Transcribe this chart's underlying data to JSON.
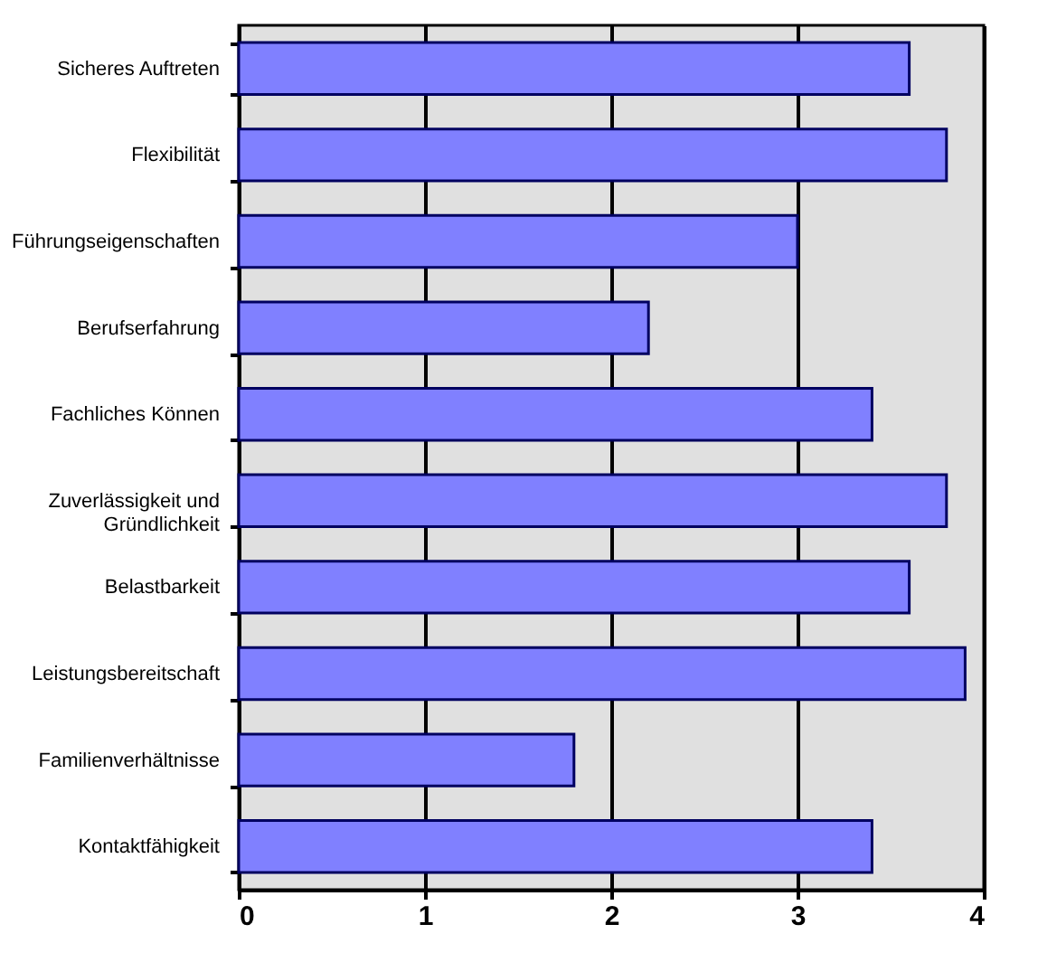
{
  "chart_data": {
    "type": "bar",
    "orientation": "horizontal",
    "categories": [
      "Sicheres Auftreten",
      "Flexibilität",
      "Führungseigenschaften",
      "Berufserfahrung",
      "Fachliches Können",
      "Zuverlässigkeit und Gründlichkeit",
      "Belastbarkeit",
      "Leistungsbereitschaft",
      "Familienverhältnisse",
      "Kontaktfähigkeit"
    ],
    "values": [
      3.6,
      3.8,
      3.0,
      2.2,
      3.4,
      3.8,
      3.6,
      3.9,
      1.8,
      3.4
    ],
    "color": "#8080ff",
    "xlim": [
      0,
      4
    ],
    "xticks": [
      0,
      1,
      2,
      3,
      4
    ],
    "grid": "x"
  }
}
